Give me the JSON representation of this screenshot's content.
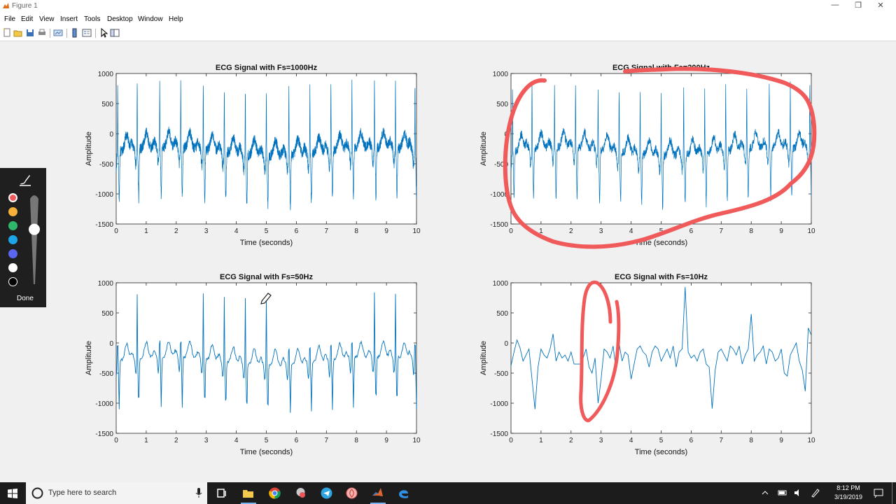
{
  "window": {
    "title": "Figure 1",
    "controls": [
      "—",
      "❐",
      "✕"
    ]
  },
  "menu": [
    "File",
    "Edit",
    "View",
    "Insert",
    "Tools",
    "Desktop",
    "Window",
    "Help"
  ],
  "colors": {
    "line": "#0072bd",
    "ink": "#f05a5a",
    "axis": "#262626",
    "taskbar": "#1c1c1c"
  },
  "chart_data": [
    {
      "type": "line",
      "title": "ECG Signal with Fs=1000Hz",
      "xlabel": "Time (seconds)",
      "ylabel": "Amplitude",
      "xlim": [
        0,
        10
      ],
      "ylim": [
        -1500,
        1000
      ],
      "xticks": [
        0,
        1,
        2,
        3,
        4,
        5,
        6,
        7,
        8,
        9,
        10
      ],
      "yticks": [
        1000,
        500,
        0,
        -500,
        -1000,
        -1500
      ],
      "series": [
        {
          "fs": 1000,
          "noise": 90,
          "beats": [
            0.05,
            0.7,
            1.45,
            2.15,
            2.9,
            3.6,
            4.3,
            5.0,
            5.75,
            6.45,
            7.15,
            7.85,
            8.6,
            9.3,
            9.95
          ]
        }
      ]
    },
    {
      "type": "line",
      "title": "ECG Signal with Fs=200Hz",
      "xlabel": "Time (seconds)",
      "ylabel": "Amplitude",
      "xlim": [
        0,
        10
      ],
      "ylim": [
        -1500,
        1000
      ],
      "xticks": [
        0,
        1,
        2,
        3,
        4,
        5,
        6,
        7,
        8,
        9,
        10
      ],
      "yticks": [
        1000,
        500,
        0,
        -500,
        -1000,
        -1500
      ],
      "series": [
        {
          "fs": 200,
          "noise": 75,
          "beats": [
            0.05,
            0.7,
            1.45,
            2.15,
            2.9,
            3.6,
            4.3,
            5.0,
            5.75,
            6.45,
            7.15,
            7.85,
            8.6,
            9.3,
            9.95
          ]
        }
      ]
    },
    {
      "type": "line",
      "title": "ECG Signal with Fs=50Hz",
      "xlabel": "Time (seconds)",
      "ylabel": "Amplitude",
      "xlim": [
        0,
        10
      ],
      "ylim": [
        -1500,
        1000
      ],
      "xticks": [
        0,
        1,
        2,
        3,
        4,
        5,
        6,
        7,
        8,
        9,
        10
      ],
      "yticks": [
        1000,
        500,
        0,
        -500,
        -1000,
        -1500
      ],
      "series": [
        {
          "fs": 50,
          "noise": 25,
          "beats": [
            0.05,
            0.7,
            1.45,
            2.15,
            2.9,
            3.6,
            4.3,
            5.0,
            5.75,
            6.45,
            7.15,
            7.85,
            8.6,
            9.3,
            9.95
          ]
        }
      ]
    },
    {
      "type": "line",
      "title": "ECG Signal with Fs=10Hz",
      "xlabel": "Time (seconds)",
      "ylabel": "Amplitude",
      "xlim": [
        0,
        10
      ],
      "ylim": [
        -1500,
        1000
      ],
      "xticks": [
        0,
        1,
        2,
        3,
        4,
        5,
        6,
        7,
        8,
        9,
        10
      ],
      "yticks": [
        1000,
        500,
        0,
        -500,
        -1000,
        -1500
      ],
      "series": [
        {
          "fs": 10,
          "points": [
            [
              0,
              -380
            ],
            [
              0.1,
              -150
            ],
            [
              0.2,
              50
            ],
            [
              0.3,
              -80
            ],
            [
              0.4,
              -300
            ],
            [
              0.5,
              -200
            ],
            [
              0.6,
              -100
            ],
            [
              0.7,
              -600
            ],
            [
              0.8,
              -1100
            ],
            [
              0.9,
              -400
            ],
            [
              1.0,
              -100
            ],
            [
              1.1,
              -200
            ],
            [
              1.2,
              -250
            ],
            [
              1.3,
              -100
            ],
            [
              1.4,
              150
            ],
            [
              1.5,
              -300
            ],
            [
              1.6,
              -150
            ],
            [
              1.7,
              -250
            ],
            [
              1.8,
              -200
            ],
            [
              1.9,
              -300
            ],
            [
              2.0,
              -150
            ],
            [
              2.1,
              -350
            ],
            [
              2.2,
              -350
            ],
            [
              2.3,
              -350
            ],
            [
              2.4,
              -250
            ],
            [
              2.5,
              -100
            ],
            [
              2.6,
              -400
            ],
            [
              2.7,
              -500
            ],
            [
              2.8,
              -250
            ],
            [
              2.9,
              -1000
            ],
            [
              3.0,
              -600
            ],
            [
              3.1,
              -100
            ],
            [
              3.2,
              -150
            ],
            [
              3.3,
              -250
            ],
            [
              3.4,
              -50
            ],
            [
              3.5,
              -450
            ],
            [
              3.6,
              0
            ],
            [
              3.7,
              -300
            ],
            [
              3.8,
              -150
            ],
            [
              3.9,
              -200
            ],
            [
              4.0,
              -600
            ],
            [
              4.1,
              -350
            ],
            [
              4.2,
              -100
            ],
            [
              4.3,
              -50
            ],
            [
              4.4,
              -150
            ],
            [
              4.5,
              -200
            ],
            [
              4.6,
              -400
            ],
            [
              4.7,
              -150
            ],
            [
              4.8,
              -50
            ],
            [
              4.9,
              -100
            ],
            [
              5.0,
              -300
            ],
            [
              5.1,
              -200
            ],
            [
              5.2,
              -100
            ],
            [
              5.3,
              -250
            ],
            [
              5.4,
              -50
            ],
            [
              5.5,
              -400
            ],
            [
              5.6,
              -150
            ],
            [
              5.7,
              -100
            ],
            [
              5.8,
              930
            ],
            [
              5.9,
              -150
            ],
            [
              6.0,
              -250
            ],
            [
              6.1,
              -200
            ],
            [
              6.2,
              -300
            ],
            [
              6.3,
              -150
            ],
            [
              6.4,
              -100
            ],
            [
              6.5,
              -350
            ],
            [
              6.6,
              -400
            ],
            [
              6.7,
              -1090
            ],
            [
              6.8,
              -450
            ],
            [
              6.9,
              -150
            ],
            [
              7.0,
              -100
            ],
            [
              7.1,
              -200
            ],
            [
              7.2,
              -300
            ],
            [
              7.3,
              -50
            ],
            [
              7.4,
              -100
            ],
            [
              7.5,
              -200
            ],
            [
              7.6,
              -50
            ],
            [
              7.7,
              -350
            ],
            [
              7.8,
              -200
            ],
            [
              7.9,
              -100
            ],
            [
              8.0,
              480
            ],
            [
              8.1,
              -300
            ],
            [
              8.2,
              -200
            ],
            [
              8.3,
              -150
            ],
            [
              8.4,
              -50
            ],
            [
              8.5,
              -350
            ],
            [
              8.6,
              -100
            ],
            [
              8.7,
              -150
            ],
            [
              8.8,
              -300
            ],
            [
              8.9,
              -250
            ],
            [
              9.0,
              -100
            ],
            [
              9.1,
              -500
            ],
            [
              9.2,
              -550
            ],
            [
              9.3,
              -200
            ],
            [
              9.4,
              -100
            ],
            [
              9.5,
              0
            ],
            [
              9.6,
              -300
            ],
            [
              9.7,
              -450
            ],
            [
              9.8,
              -800
            ],
            [
              9.9,
              250
            ],
            [
              10.0,
              130
            ]
          ]
        }
      ]
    }
  ],
  "pen_palette": {
    "colors": [
      "#f05a5a",
      "#f7b03a",
      "#2fb86b",
      "#1ea5e8",
      "#5b66f0",
      "#ffffff",
      "#000000"
    ],
    "selected": 0,
    "done_label": "Done",
    "thickness": 0.63
  },
  "taskbar": {
    "search_placeholder": "Type here to search",
    "time": "8:12 PM",
    "date": "3/19/2019",
    "apps": [
      "task-view",
      "file-explorer",
      "chrome",
      "app-generic",
      "telegram",
      "app-spiral",
      "matlab",
      "edge"
    ]
  }
}
